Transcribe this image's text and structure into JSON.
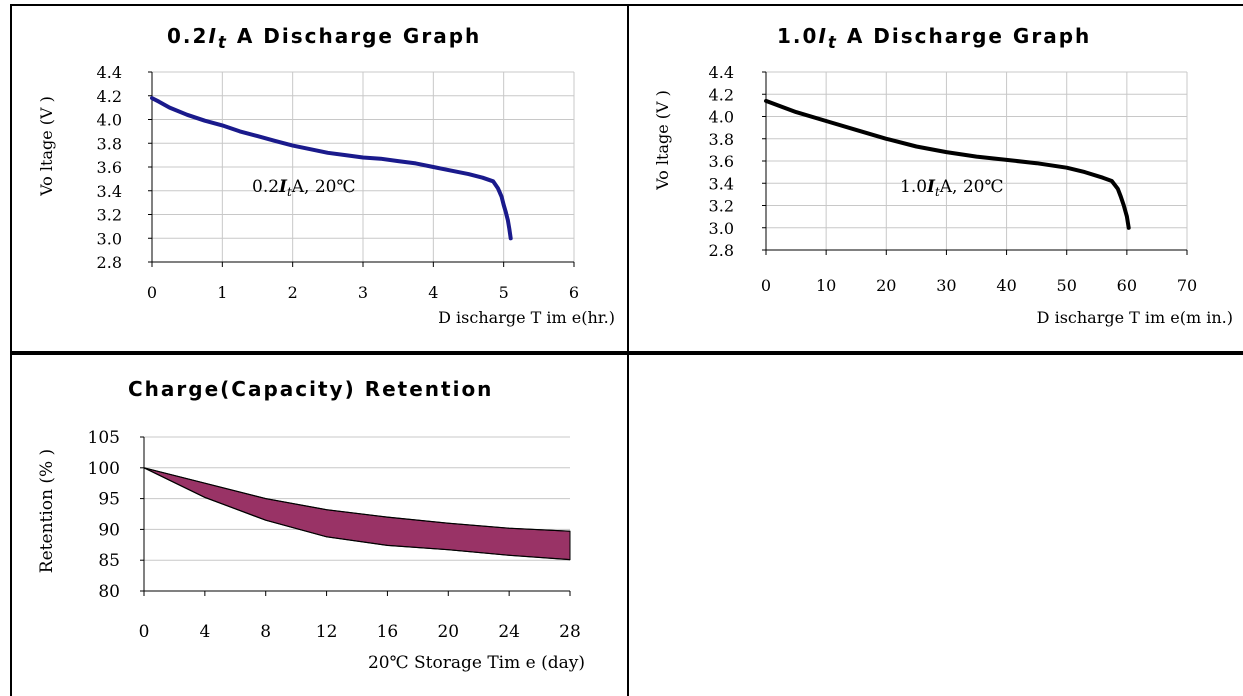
{
  "chart_data": [
    {
      "type": "line",
      "title_parts": [
        "0.2",
        "I",
        "t",
        "A Discharge Graph"
      ],
      "xlabel": "D ischarge T im e(hr.)",
      "ylabel": "Vo ltage (V )",
      "annotation_parts": [
        "0.2",
        "I",
        "t",
        "A, 20℃"
      ],
      "xlim": [
        0,
        6
      ],
      "ylim": [
        2.8,
        4.4
      ],
      "xticks": [
        "0",
        "1",
        "2",
        "3",
        "4",
        "5",
        "6"
      ],
      "yticks": [
        "2.8",
        "3.0",
        "3.2",
        "3.4",
        "3.6",
        "3.8",
        "4.0",
        "4.2",
        "4.4"
      ],
      "grid": true,
      "series": [
        {
          "color": "#1a1a8c",
          "x": [
            0,
            0.1,
            0.25,
            0.5,
            0.75,
            1.0,
            1.25,
            1.5,
            1.75,
            2.0,
            2.25,
            2.5,
            2.75,
            3.0,
            3.25,
            3.5,
            3.75,
            4.0,
            4.25,
            4.5,
            4.7,
            4.85,
            4.92,
            4.97,
            5.0,
            5.03,
            5.06,
            5.08,
            5.1
          ],
          "y": [
            4.18,
            4.15,
            4.1,
            4.04,
            3.99,
            3.95,
            3.9,
            3.86,
            3.82,
            3.78,
            3.75,
            3.72,
            3.7,
            3.68,
            3.67,
            3.65,
            3.63,
            3.6,
            3.57,
            3.54,
            3.51,
            3.48,
            3.42,
            3.35,
            3.28,
            3.22,
            3.15,
            3.08,
            3.0
          ]
        }
      ]
    },
    {
      "type": "line",
      "title_parts": [
        "1.0",
        "I",
        "t",
        "A Discharge Graph"
      ],
      "xlabel": "D ischarge T im e(m in.)",
      "ylabel": "Vo ltage (V )",
      "annotation_parts": [
        "1.0",
        "I",
        "t",
        "A, 20℃"
      ],
      "xlim": [
        0,
        70
      ],
      "ylim": [
        2.8,
        4.4
      ],
      "xticks": [
        "0",
        "10",
        "20",
        "30",
        "40",
        "50",
        "60",
        "70"
      ],
      "yticks": [
        "2.8",
        "3.0",
        "3.2",
        "3.4",
        "3.6",
        "3.8",
        "4.0",
        "4.2",
        "4.4"
      ],
      "grid": true,
      "series": [
        {
          "color": "#000000",
          "x": [
            0,
            2,
            5,
            10,
            15,
            20,
            25,
            30,
            35,
            40,
            45,
            50,
            53,
            56,
            57.5,
            58.5,
            59,
            59.5,
            60,
            60.3
          ],
          "y": [
            4.14,
            4.1,
            4.04,
            3.96,
            3.88,
            3.8,
            3.73,
            3.68,
            3.64,
            3.61,
            3.58,
            3.54,
            3.5,
            3.45,
            3.42,
            3.35,
            3.28,
            3.2,
            3.1,
            3.0
          ]
        }
      ]
    },
    {
      "type": "area",
      "title": "Charge(Capacity) Retention",
      "xlabel": "20℃ Storage Tim e (day)",
      "ylabel": "Retention (% )",
      "xlim": [
        0,
        28
      ],
      "ylim": [
        80,
        105
      ],
      "xticks": [
        "0",
        "4",
        "8",
        "12",
        "16",
        "20",
        "24",
        "28"
      ],
      "yticks": [
        "80",
        "85",
        "90",
        "95",
        "100",
        "105"
      ],
      "grid": true,
      "fill_color": "#993366",
      "x": [
        0,
        4,
        8,
        12,
        16,
        20,
        24,
        28
      ],
      "upper": [
        100,
        97.5,
        95.0,
        93.2,
        92.0,
        91.0,
        90.2,
        89.7
      ],
      "lower": [
        100,
        95.2,
        91.5,
        88.8,
        87.4,
        86.7,
        85.8,
        85.1
      ]
    }
  ]
}
